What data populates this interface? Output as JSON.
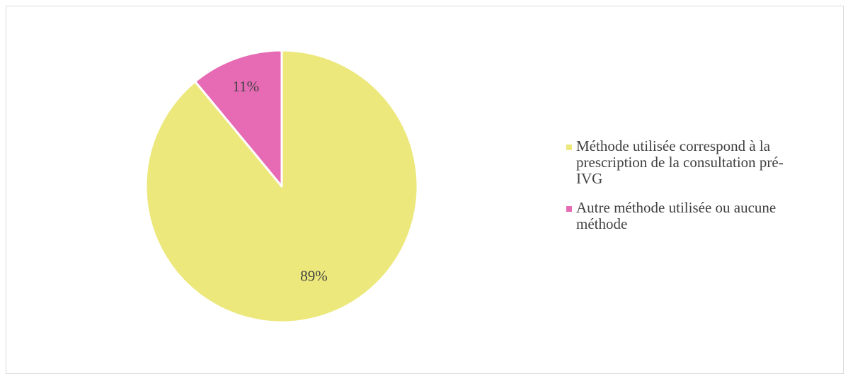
{
  "chart_data": {
    "type": "pie",
    "title": "",
    "slices": [
      {
        "label": "Méthode utilisée correspond à la prescription de la consultation pré-IVG",
        "value": 89,
        "display": "89%",
        "color": "#ece87c"
      },
      {
        "label": "Autre méthode utilisée ou aucune méthode",
        "value": 11,
        "display": "11%",
        "color": "#e66bb4"
      }
    ],
    "start_angle_deg": 0,
    "direction": "clockwise",
    "legend_position": "right",
    "slice_border_color": "#ffffff"
  }
}
